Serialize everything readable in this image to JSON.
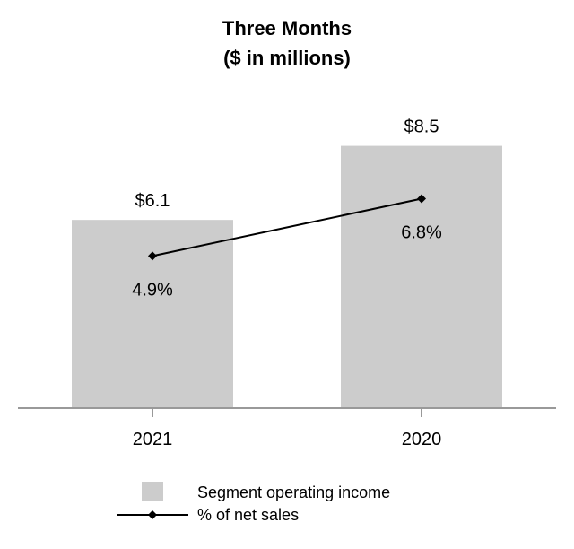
{
  "chart_data": {
    "type": "bar",
    "title": "Three Months",
    "subtitle": "($ in millions)",
    "categories": [
      "2021",
      "2020"
    ],
    "series": [
      {
        "name": "Segment operating income",
        "kind": "bar",
        "color": "#cccccc",
        "values": [
          6.1,
          8.5
        ],
        "labels": [
          "$6.1",
          "$8.5"
        ]
      },
      {
        "name": "% of net sales",
        "kind": "line",
        "color": "#000000",
        "marker": "diamond",
        "values": [
          4.9,
          6.8
        ],
        "labels": [
          "4.9%",
          "6.8%"
        ]
      }
    ],
    "grid": false,
    "legend_position": "bottom"
  }
}
